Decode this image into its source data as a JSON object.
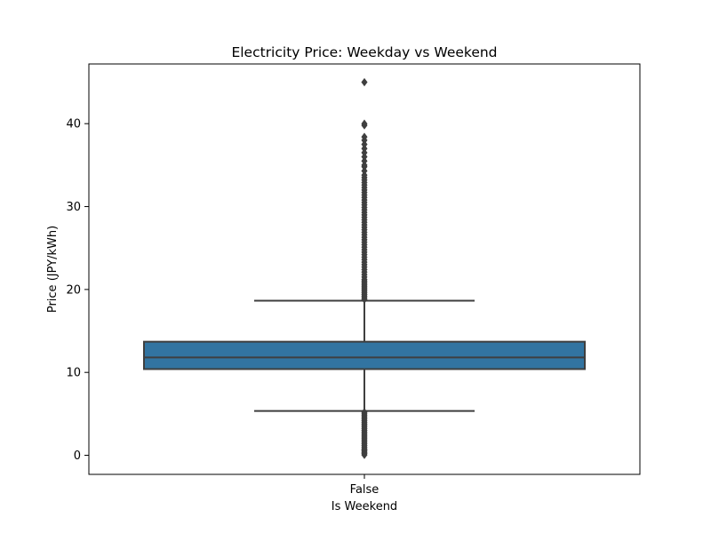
{
  "chart_data": {
    "type": "box",
    "title": "Electricity Price: Weekday vs Weekend",
    "xlabel": "Is Weekend",
    "ylabel": "Price (JPY/kWh)",
    "categories": [
      "False"
    ],
    "ylim": [
      -2.3,
      47.2
    ],
    "yticks": [
      0,
      10,
      20,
      30,
      40
    ],
    "grid": false,
    "boxes": [
      {
        "category": "False",
        "whisker_low": 5.35,
        "q1": 10.4,
        "median": 11.8,
        "q3": 13.7,
        "whisker_high": 18.65,
        "outliers": [
          0.05,
          0.2,
          0.35,
          0.5,
          0.65,
          0.8,
          1.0,
          1.2,
          1.4,
          1.6,
          1.8,
          2.0,
          2.2,
          2.4,
          2.6,
          2.8,
          3.0,
          3.2,
          3.4,
          3.6,
          3.8,
          4.0,
          4.2,
          4.4,
          4.6,
          4.8,
          5.0,
          5.2,
          18.8,
          19.0,
          19.2,
          19.4,
          19.6,
          19.8,
          20.0,
          20.2,
          20.4,
          20.6,
          20.8,
          21.0,
          21.2,
          21.5,
          21.8,
          22.1,
          22.4,
          22.7,
          23.0,
          23.3,
          23.6,
          23.9,
          24.2,
          24.5,
          24.8,
          25.1,
          25.4,
          25.7,
          26.0,
          26.3,
          26.6,
          26.9,
          27.2,
          27.5,
          27.8,
          28.1,
          28.4,
          28.7,
          29.0,
          29.3,
          29.6,
          29.9,
          30.2,
          30.5,
          30.8,
          31.1,
          31.4,
          31.7,
          32.0,
          32.3,
          32.6,
          32.9,
          33.2,
          33.5,
          33.8,
          34.3,
          34.8,
          35.0,
          35.5,
          36.0,
          36.5,
          37.0,
          37.5,
          38.0,
          38.4,
          39.8,
          40.0,
          45.0
        ]
      }
    ],
    "colors": {
      "box_fill": "#3274a1",
      "line": "#3f3f3f",
      "axes": "#000000"
    }
  }
}
